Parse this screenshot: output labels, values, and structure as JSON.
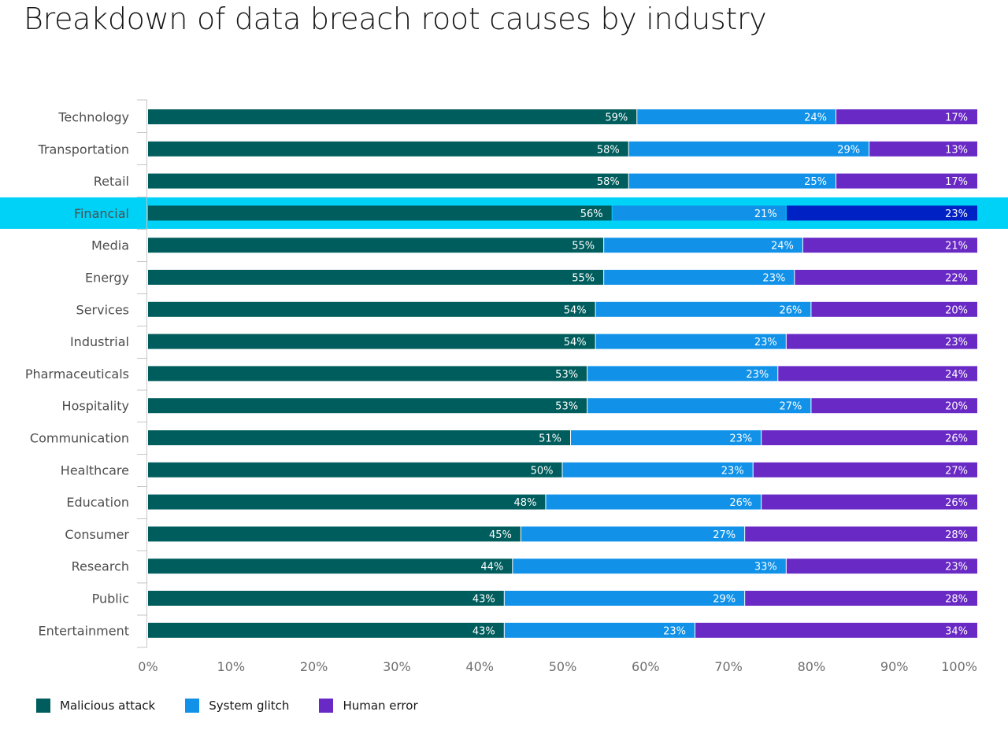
{
  "title": "Breakdown of data breach root causes by industry",
  "colors": {
    "malicious": "#005d5d",
    "glitch": "#1192e8",
    "human": "#6929c4",
    "highlight_band": "#00d2f7",
    "highlight_human": "#0021c4",
    "highlight_text": "#0f8aa8"
  },
  "legend": [
    {
      "label": "Malicious attack",
      "color": "#005d5d"
    },
    {
      "label": "System glitch",
      "color": "#1192e8"
    },
    {
      "label": "Human error",
      "color": "#6929c4"
    }
  ],
  "chart_data": {
    "type": "bar",
    "orientation": "horizontal",
    "stacked": true,
    "title": "Breakdown of data breach root causes by industry",
    "highlighted_category": "Financial",
    "categories": [
      "Technology",
      "Transportation",
      "Retail",
      "Financial",
      "Media",
      "Energy",
      "Services",
      "Industrial",
      "Pharmaceuticals",
      "Hospitality",
      "Communication",
      "Healthcare",
      "Education",
      "Consumer",
      "Research",
      "Public",
      "Entertainment"
    ],
    "series": [
      {
        "name": "Malicious attack",
        "values": [
          59,
          58,
          58,
          56,
          55,
          55,
          54,
          54,
          53,
          53,
          51,
          50,
          48,
          45,
          44,
          43,
          43
        ]
      },
      {
        "name": "System glitch",
        "values": [
          24,
          29,
          25,
          21,
          24,
          23,
          26,
          23,
          23,
          27,
          23,
          23,
          26,
          27,
          33,
          29,
          23
        ]
      },
      {
        "name": "Human error",
        "values": [
          17,
          13,
          17,
          23,
          21,
          22,
          20,
          23,
          24,
          20,
          26,
          27,
          26,
          28,
          23,
          28,
          34
        ]
      }
    ],
    "x_ticks": [
      "0%",
      "10%",
      "20%",
      "30%",
      "40%",
      "50%",
      "60%",
      "70%",
      "80%",
      "90%",
      "100%"
    ],
    "xlim": [
      0,
      100
    ],
    "legend_position": "bottom-left",
    "grid": false
  }
}
